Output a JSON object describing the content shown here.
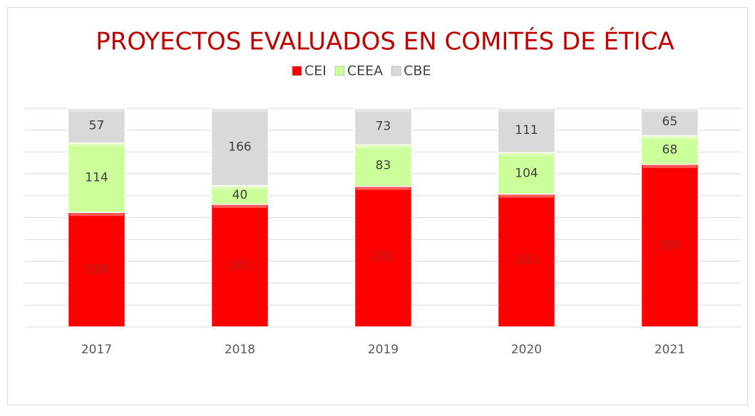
{
  "chart_data": {
    "type": "bar",
    "stacked": "percent",
    "title": "PROYECTOS EVALUADOS EN COMITÉS DE ÉTICA",
    "categories": [
      "2017",
      "2018",
      "2019",
      "2020",
      "2021"
    ],
    "series": [
      {
        "name": "CEI",
        "color": "#ff0000",
        "values": [
          188,
          263,
          281,
          333,
          386
        ]
      },
      {
        "name": "CEEA",
        "color": "#ccff99",
        "values": [
          114,
          40,
          83,
          104,
          68
        ]
      },
      {
        "name": "CBE",
        "color": "#d9d9d9",
        "values": [
          57,
          166,
          73,
          111,
          65
        ]
      }
    ],
    "ylim": [
      0,
      100
    ],
    "yticks": [
      0,
      10,
      20,
      30,
      40,
      50,
      60,
      70,
      80,
      90,
      100
    ],
    "grid": true
  }
}
